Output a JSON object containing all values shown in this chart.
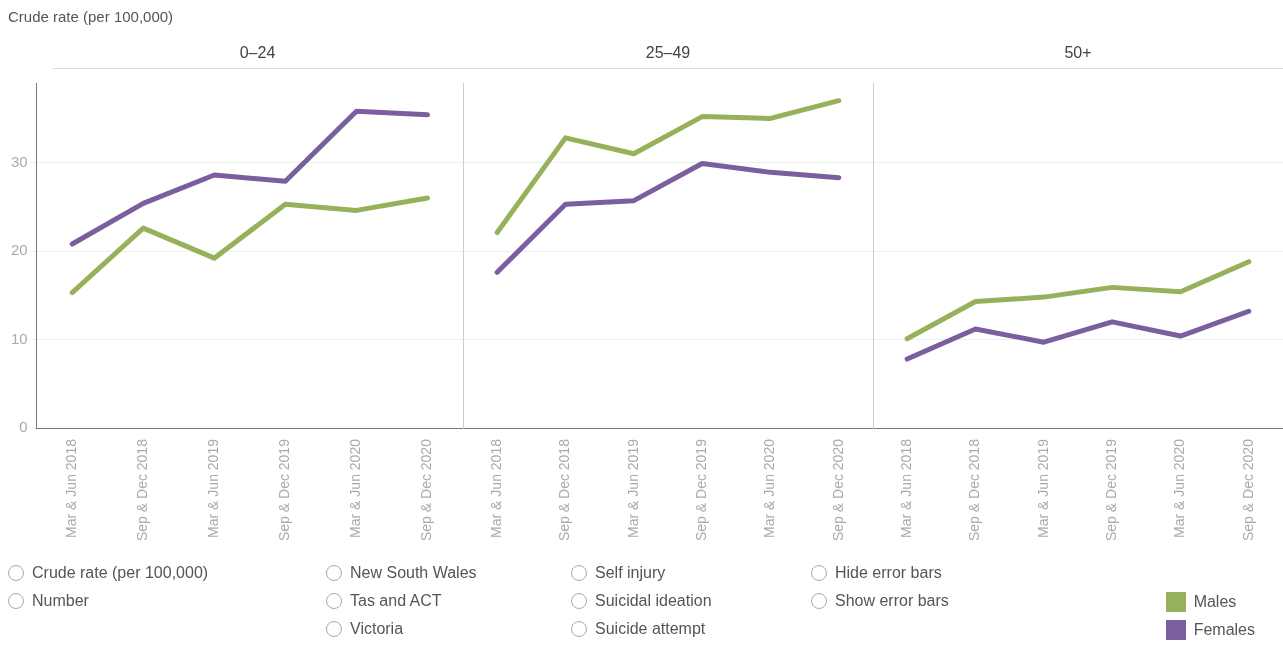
{
  "chart_data": [
    {
      "type": "line",
      "title": "0–24",
      "ylabel": "Crude rate (per 100,000)",
      "categories": [
        "Mar & Jun 2018",
        "Sep & Dec 2018",
        "Mar & Jun 2019",
        "Sep & Dec 2019",
        "Mar & Jun 2020",
        "Sep & Dec 2020"
      ],
      "ylim": [
        0,
        39
      ],
      "yticks": [
        0,
        10,
        20,
        30
      ],
      "grid": "y",
      "legend": false,
      "series": [
        {
          "color": "#97b15a",
          "values": [
            15.3,
            22.6,
            19.2,
            25.3,
            24.6,
            26.0
          ]
        },
        {
          "color": "#7b5e9e",
          "values": [
            20.8,
            25.4,
            28.6,
            27.9,
            35.8,
            35.4
          ]
        }
      ]
    },
    {
      "type": "line",
      "title": "25–49",
      "categories": [
        "Mar & Jun 2018",
        "Sep & Dec 2018",
        "Mar & Jun 2019",
        "Sep & Dec 2019",
        "Mar & Jun 2020",
        "Sep & Dec 2020"
      ],
      "ylim": [
        0,
        39
      ],
      "yticks": [
        0,
        10,
        20,
        30
      ],
      "grid": "y",
      "legend": false,
      "tick_labels": "x",
      "series": [
        {
          "color": "#97b15a",
          "values": [
            22.1,
            32.8,
            31.0,
            35.2,
            35.0,
            37.0
          ]
        },
        {
          "color": "#7b5e9e",
          "values": [
            17.6,
            25.3,
            25.7,
            29.9,
            28.9,
            28.3
          ]
        }
      ]
    },
    {
      "type": "line",
      "title": "50+",
      "categories": [
        "Mar & Jun 2018",
        "Sep & Dec 2018",
        "Mar & Jun 2019",
        "Sep & Dec 2019",
        "Mar & Jun 2020",
        "Sep & Dec 2020"
      ],
      "ylim": [
        0,
        39
      ],
      "yticks": [
        0,
        10,
        20,
        30
      ],
      "grid": "y",
      "legend": "bottom right",
      "tick_labels": "x",
      "series": [
        {
          "name": "Males",
          "color": "#97b15a",
          "values": [
            10.1,
            14.3,
            14.8,
            15.9,
            15.4,
            18.8
          ]
        },
        {
          "name": "Females",
          "color": "#7b5e9e",
          "values": [
            7.8,
            11.2,
            9.7,
            12.0,
            10.4,
            13.2
          ]
        }
      ]
    },
    {
      "type": "other",
      "annotations": [
        "Crude rate (per 100,000)",
        "Number",
        "New South Wales",
        "Tas and ACT",
        "Victoria",
        "Self injury",
        "Suicidal ideation",
        "Suicide attempt",
        "Hide error bars",
        "Show error bars"
      ]
    }
  ]
}
